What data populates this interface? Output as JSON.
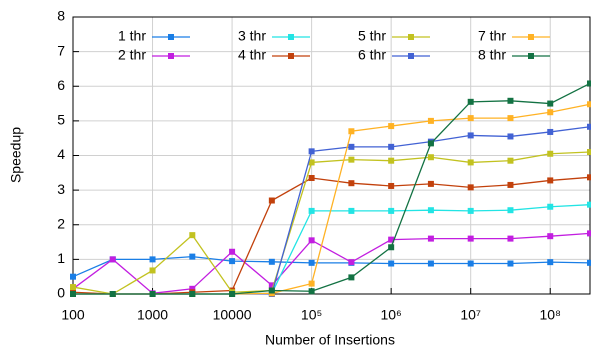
{
  "chart_data": {
    "type": "line",
    "x_label": "Number of Insertions",
    "y_label": "Speedup",
    "xscale": "log",
    "grid": true,
    "x": [
      100,
      316,
      1000,
      3162,
      10000,
      31623,
      100000,
      316228,
      1000000,
      3162278,
      10000000,
      31622777,
      100000000,
      316227766
    ],
    "xlim": [
      100,
      316227766
    ],
    "xticks": [
      100,
      1000,
      10000,
      {
        "value": 100000,
        "label": "10⁵"
      },
      {
        "value": 1000000,
        "label": "10⁶"
      },
      {
        "value": 10000000,
        "label": "10⁷"
      },
      {
        "value": 100000000,
        "label": "10⁸"
      }
    ],
    "ylim": [
      0,
      8
    ],
    "yticks": [
      0,
      1,
      2,
      3,
      4,
      5,
      6,
      7,
      8
    ],
    "series": [
      {
        "name": "1 thr",
        "color": "#1a7ee6",
        "values": [
          0.5,
          1.0,
          1.0,
          1.08,
          0.95,
          0.93,
          0.9,
          0.9,
          0.88,
          0.88,
          0.88,
          0.88,
          0.92,
          0.9
        ]
      },
      {
        "name": "2 thr",
        "color": "#c21ee0",
        "values": [
          0.15,
          1.0,
          0.02,
          0.15,
          1.22,
          0.25,
          1.55,
          0.92,
          1.57,
          1.6,
          1.6,
          1.6,
          1.67,
          1.75
        ]
      },
      {
        "name": "3 thr",
        "color": "#22e4e4",
        "values": [
          0,
          0,
          0,
          0,
          0,
          0.02,
          2.4,
          2.4,
          2.4,
          2.42,
          2.4,
          2.42,
          2.52,
          2.58
        ]
      },
      {
        "name": "4 thr",
        "color": "#c2410c",
        "values": [
          0.05,
          0,
          0,
          0.05,
          0.1,
          2.7,
          3.35,
          3.2,
          3.12,
          3.18,
          3.08,
          3.15,
          3.28,
          3.37
        ]
      },
      {
        "name": "5 thr",
        "color": "#c2c220",
        "values": [
          0.2,
          0,
          0.68,
          1.7,
          0.05,
          0.1,
          3.8,
          3.88,
          3.85,
          3.95,
          3.8,
          3.85,
          4.05,
          4.1
        ]
      },
      {
        "name": "6 thr",
        "color": "#4262d4",
        "values": [
          0,
          0,
          0,
          0,
          0,
          0,
          4.12,
          4.25,
          4.25,
          4.4,
          4.58,
          4.55,
          4.68,
          4.83
        ]
      },
      {
        "name": "7 thr",
        "color": "#ffb224",
        "values": [
          0,
          0,
          0,
          0,
          0,
          0.02,
          0.3,
          4.7,
          4.85,
          5.0,
          5.08,
          5.08,
          5.25,
          5.48
        ]
      },
      {
        "name": "8 thr",
        "color": "#137243",
        "values": [
          0,
          0,
          0,
          0,
          0,
          0.1,
          0.08,
          0.48,
          1.35,
          4.35,
          5.55,
          5.58,
          5.5,
          6.08
        ]
      }
    ]
  }
}
